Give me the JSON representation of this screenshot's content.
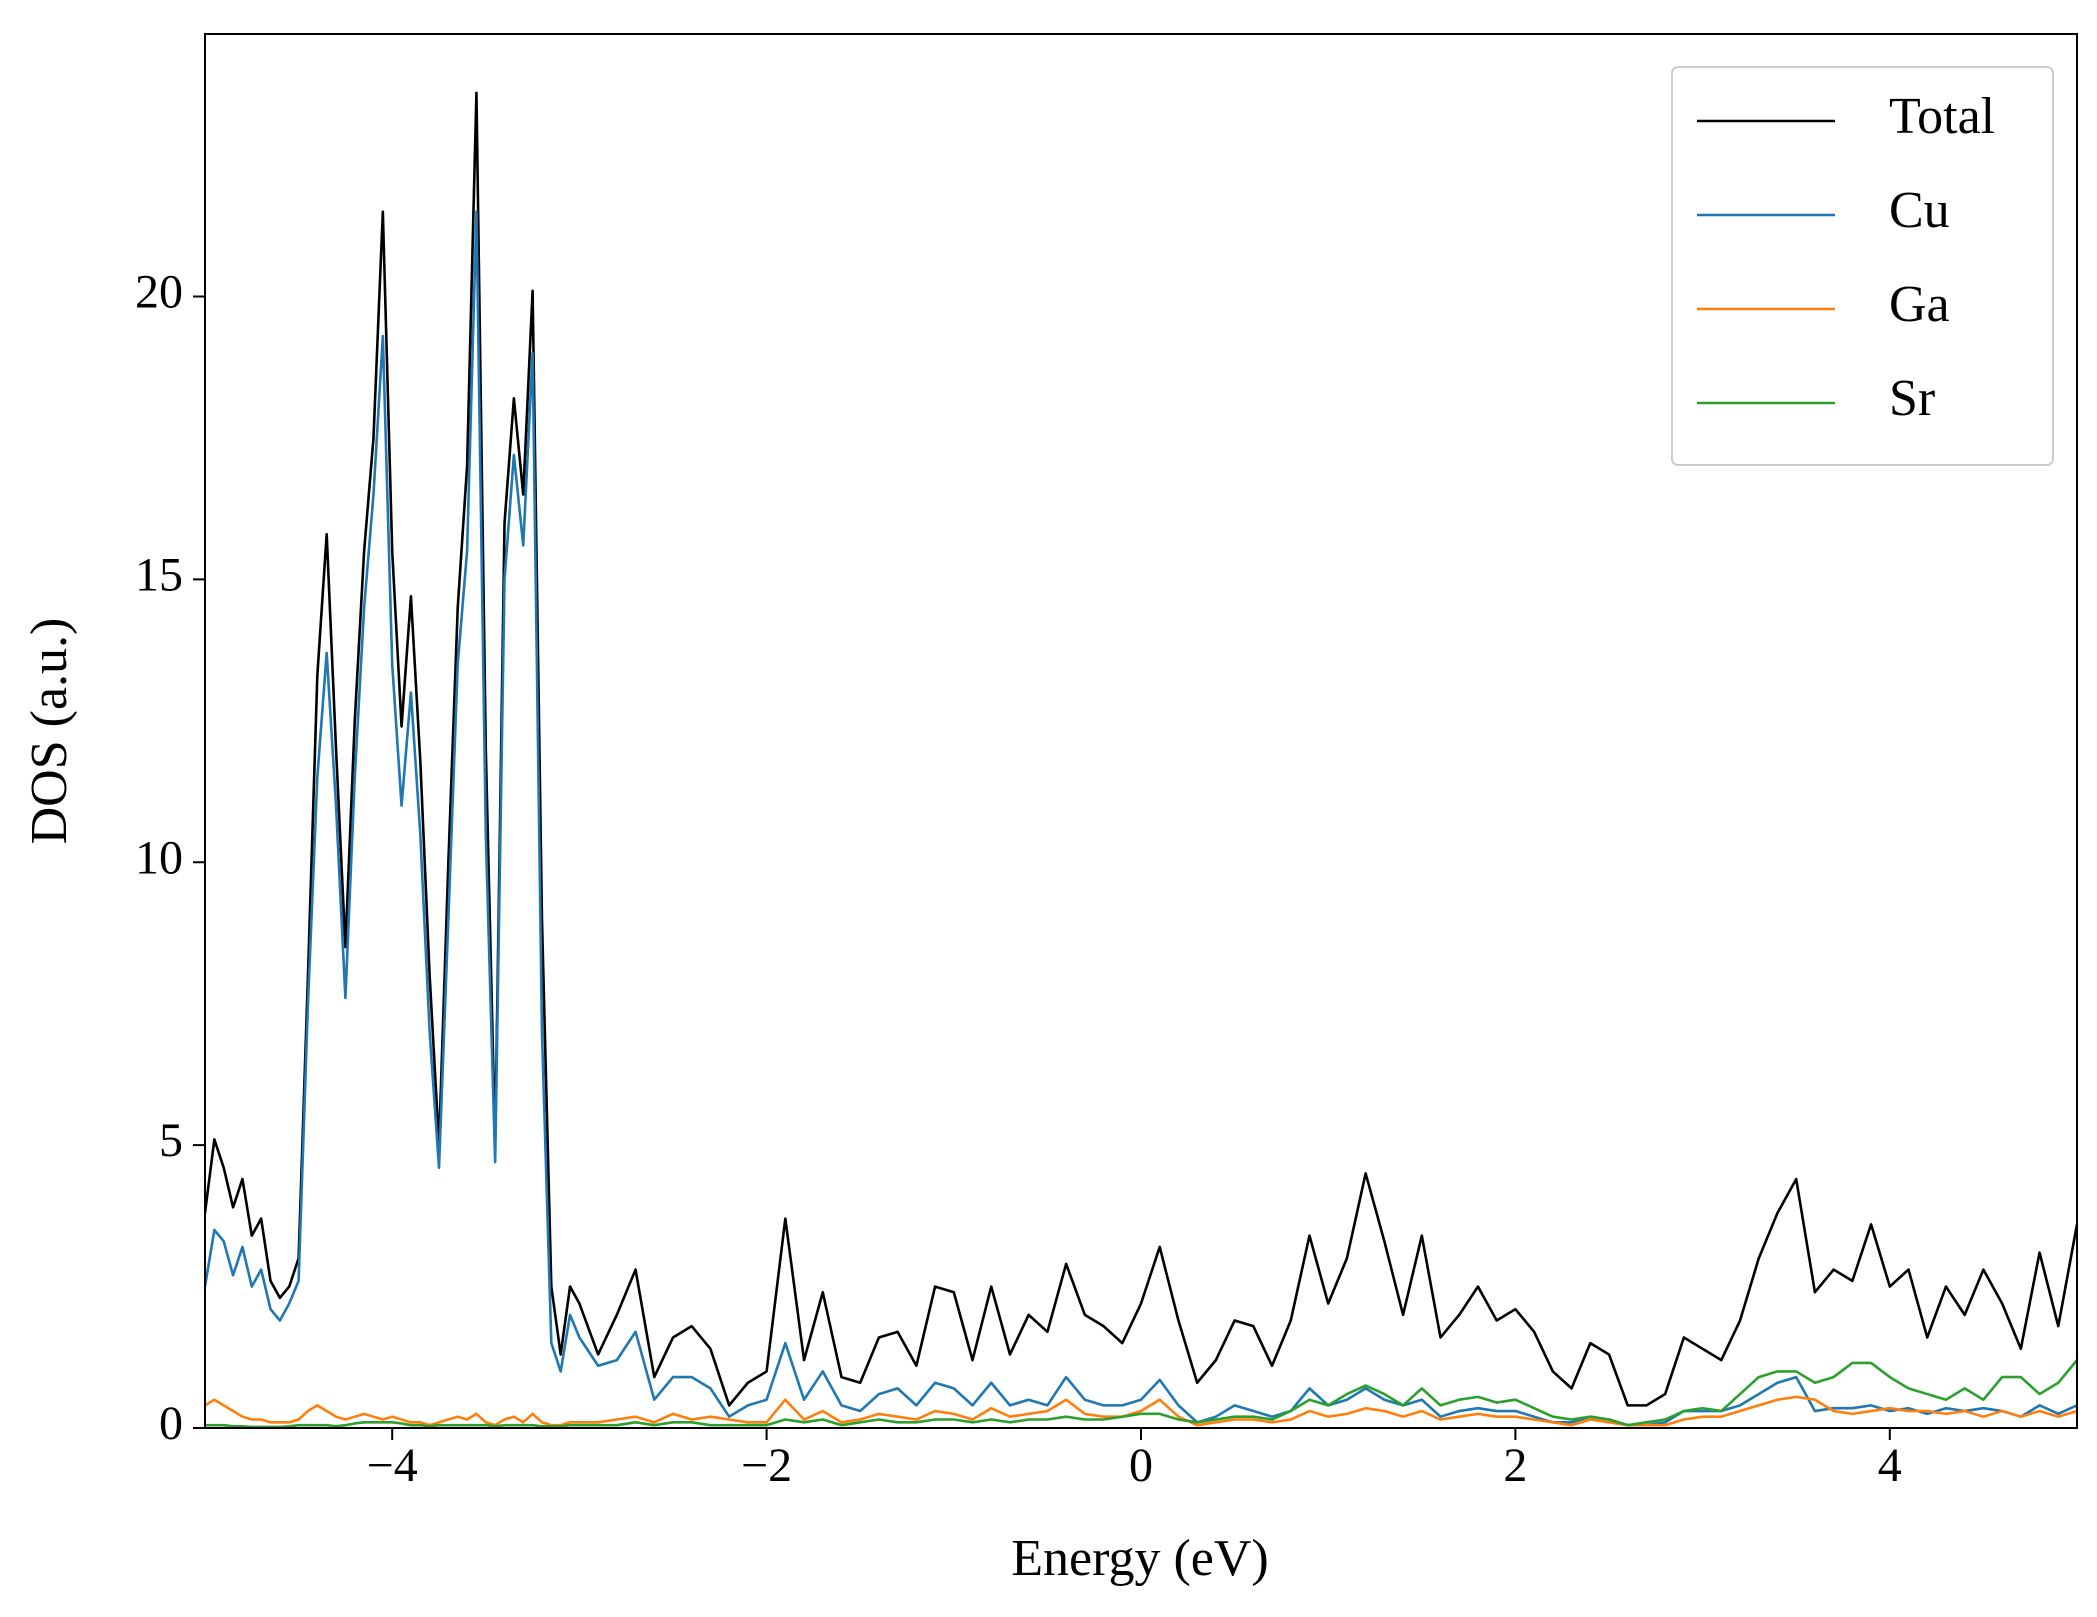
{
  "chart_data": {
    "type": "line",
    "xlabel": "Energy (eV)",
    "ylabel": "DOS (a.u.)",
    "xlim": [
      -5,
      5
    ],
    "ylim": [
      0,
      24.64
    ],
    "xticks": [
      {
        "value": -4,
        "label": "−4"
      },
      {
        "value": -2,
        "label": "−2"
      },
      0,
      2,
      4
    ],
    "yticks": [
      0,
      5,
      10,
      15,
      20
    ],
    "legend": "upper right",
    "x": [
      -5,
      -4.95,
      -4.9,
      -4.85,
      -4.8,
      -4.75,
      -4.7,
      -4.65,
      -4.6,
      -4.55,
      -4.5,
      -4.45,
      -4.4,
      -4.35,
      -4.3,
      -4.25,
      -4.2,
      -4.15,
      -4.1,
      -4.05,
      -4,
      -3.95,
      -3.9,
      -3.85,
      -3.8,
      -3.75,
      -3.7,
      -3.65,
      -3.6,
      -3.55,
      -3.5,
      -3.45,
      -3.4,
      -3.35,
      -3.3,
      -3.25,
      -3.2,
      -3.15,
      -3.1,
      -3.05,
      -3,
      -2.9,
      -2.8,
      -2.7,
      -2.6,
      -2.5,
      -2.4,
      -2.3,
      -2.2,
      -2.1,
      -2,
      -1.9,
      -1.8,
      -1.7,
      -1.6,
      -1.5,
      -1.4,
      -1.3,
      -1.2,
      -1.1,
      -1,
      -0.9,
      -0.8,
      -0.7,
      -0.6,
      -0.5,
      -0.4,
      -0.3,
      -0.2,
      -0.1,
      0,
      0.1,
      0.2,
      0.3,
      0.4,
      0.5,
      0.6,
      0.7,
      0.8,
      0.9,
      1,
      1.1,
      1.2,
      1.3,
      1.4,
      1.5,
      1.6,
      1.7,
      1.8,
      1.9,
      2,
      2.1,
      2.2,
      2.3,
      2.4,
      2.5,
      2.6,
      2.7,
      2.8,
      2.9,
      3,
      3.1,
      3.2,
      3.3,
      3.4,
      3.5,
      3.6,
      3.7,
      3.8,
      3.9,
      4,
      4.1,
      4.2,
      4.3,
      4.4,
      4.5,
      4.6,
      4.7,
      4.8,
      4.9,
      5
    ],
    "series": [
      {
        "name": "Total",
        "color": "#000000",
        "values": [
          3.8,
          5.1,
          4.6,
          3.9,
          4.4,
          3.4,
          3.7,
          2.6,
          2.3,
          2.5,
          3.0,
          8.0,
          13.3,
          15.8,
          12.0,
          8.5,
          12.5,
          15.5,
          17.5,
          21.5,
          15.5,
          12.4,
          14.7,
          11.8,
          8.0,
          5.0,
          10.0,
          14.5,
          17.0,
          23.6,
          12.0,
          5.0,
          16.0,
          18.2,
          16.5,
          20.1,
          9.0,
          2.5,
          1.3,
          2.5,
          2.2,
          1.3,
          2.0,
          2.8,
          0.9,
          1.6,
          1.8,
          1.4,
          0.4,
          0.8,
          1.0,
          3.7,
          1.2,
          2.4,
          0.9,
          0.8,
          1.6,
          1.7,
          1.1,
          2.5,
          2.4,
          1.2,
          2.5,
          1.3,
          2.0,
          1.7,
          2.9,
          2.0,
          1.8,
          1.5,
          2.2,
          3.2,
          1.9,
          0.8,
          1.2,
          1.9,
          1.8,
          1.1,
          1.9,
          3.4,
          2.2,
          3.0,
          4.5,
          3.3,
          2.0,
          3.4,
          1.6,
          2.0,
          2.5,
          1.9,
          2.1,
          1.7,
          1.0,
          0.7,
          1.5,
          1.3,
          0.4,
          0.4,
          0.6,
          1.6,
          1.4,
          1.2,
          1.9,
          3.0,
          3.8,
          4.4,
          2.4,
          2.8,
          2.6,
          3.6,
          2.5,
          2.8,
          1.6,
          2.5,
          2.0,
          2.8,
          2.2,
          1.4,
          3.1,
          1.8,
          3.6
        ]
      },
      {
        "name": "Cu",
        "color": "#1f77b4",
        "values": [
          2.5,
          3.5,
          3.3,
          2.7,
          3.2,
          2.5,
          2.8,
          2.1,
          1.9,
          2.2,
          2.6,
          7.5,
          11.5,
          13.7,
          11.0,
          7.6,
          11.5,
          14.5,
          16.5,
          19.3,
          13.5,
          11.0,
          13.0,
          10.5,
          7.0,
          4.6,
          9.0,
          13.5,
          15.5,
          21.5,
          10.5,
          4.7,
          15.0,
          17.2,
          15.6,
          19.0,
          7.0,
          1.5,
          1.0,
          2.0,
          1.6,
          1.1,
          1.2,
          1.7,
          0.5,
          0.9,
          0.9,
          0.7,
          0.2,
          0.4,
          0.5,
          1.5,
          0.5,
          1.0,
          0.4,
          0.3,
          0.6,
          0.7,
          0.4,
          0.8,
          0.7,
          0.4,
          0.8,
          0.4,
          0.5,
          0.4,
          0.9,
          0.5,
          0.4,
          0.4,
          0.5,
          0.85,
          0.4,
          0.1,
          0.2,
          0.4,
          0.3,
          0.2,
          0.3,
          0.7,
          0.4,
          0.5,
          0.7,
          0.5,
          0.4,
          0.5,
          0.2,
          0.3,
          0.35,
          0.3,
          0.3,
          0.2,
          0.1,
          0.1,
          0.2,
          0.15,
          0.05,
          0.05,
          0.1,
          0.3,
          0.3,
          0.3,
          0.4,
          0.6,
          0.8,
          0.9,
          0.3,
          0.35,
          0.35,
          0.4,
          0.3,
          0.35,
          0.25,
          0.35,
          0.3,
          0.35,
          0.3,
          0.2,
          0.4,
          0.25,
          0.4
        ]
      },
      {
        "name": "Ga",
        "color": "#ff7f0e",
        "values": [
          0.4,
          0.5,
          0.4,
          0.3,
          0.2,
          0.15,
          0.15,
          0.1,
          0.1,
          0.1,
          0.15,
          0.3,
          0.4,
          0.3,
          0.2,
          0.15,
          0.2,
          0.25,
          0.2,
          0.15,
          0.2,
          0.15,
          0.1,
          0.1,
          0.05,
          0.1,
          0.15,
          0.2,
          0.15,
          0.25,
          0.1,
          0.05,
          0.15,
          0.2,
          0.1,
          0.25,
          0.1,
          0.05,
          0.05,
          0.1,
          0.1,
          0.1,
          0.15,
          0.2,
          0.1,
          0.25,
          0.15,
          0.2,
          0.15,
          0.1,
          0.1,
          0.5,
          0.15,
          0.3,
          0.1,
          0.15,
          0.25,
          0.2,
          0.15,
          0.3,
          0.25,
          0.15,
          0.35,
          0.2,
          0.25,
          0.3,
          0.5,
          0.25,
          0.2,
          0.2,
          0.3,
          0.5,
          0.2,
          0.05,
          0.1,
          0.15,
          0.15,
          0.1,
          0.15,
          0.3,
          0.2,
          0.25,
          0.35,
          0.3,
          0.2,
          0.3,
          0.15,
          0.2,
          0.25,
          0.2,
          0.2,
          0.15,
          0.1,
          0.05,
          0.15,
          0.1,
          0.05,
          0.05,
          0.05,
          0.15,
          0.2,
          0.2,
          0.3,
          0.4,
          0.5,
          0.55,
          0.5,
          0.3,
          0.25,
          0.3,
          0.35,
          0.3,
          0.3,
          0.25,
          0.3,
          0.2,
          0.3,
          0.2,
          0.3,
          0.2,
          0.3
        ]
      },
      {
        "name": "Sr",
        "color": "#2ca02c",
        "values": [
          0.05,
          0.05,
          0.05,
          0.03,
          0.03,
          0.02,
          0.02,
          0.02,
          0.02,
          0.03,
          0.05,
          0.05,
          0.05,
          0.05,
          0.03,
          0.05,
          0.08,
          0.1,
          0.1,
          0.1,
          0.1,
          0.08,
          0.05,
          0.05,
          0.03,
          0.05,
          0.05,
          0.05,
          0.05,
          0.05,
          0.05,
          0.03,
          0.05,
          0.05,
          0.05,
          0.05,
          0.03,
          0.03,
          0.03,
          0.05,
          0.05,
          0.05,
          0.05,
          0.1,
          0.05,
          0.1,
          0.1,
          0.05,
          0.05,
          0.05,
          0.05,
          0.15,
          0.1,
          0.15,
          0.05,
          0.1,
          0.15,
          0.1,
          0.1,
          0.15,
          0.15,
          0.1,
          0.15,
          0.1,
          0.15,
          0.15,
          0.2,
          0.15,
          0.15,
          0.2,
          0.25,
          0.25,
          0.15,
          0.1,
          0.15,
          0.2,
          0.2,
          0.15,
          0.3,
          0.5,
          0.4,
          0.6,
          0.75,
          0.6,
          0.4,
          0.7,
          0.4,
          0.5,
          0.55,
          0.45,
          0.5,
          0.35,
          0.2,
          0.15,
          0.2,
          0.15,
          0.05,
          0.1,
          0.15,
          0.3,
          0.35,
          0.3,
          0.6,
          0.9,
          1.0,
          1.0,
          0.8,
          0.9,
          1.15,
          1.15,
          0.9,
          0.7,
          0.6,
          0.5,
          0.7,
          0.5,
          0.9,
          0.9,
          0.6,
          0.8,
          1.2
        ]
      }
    ]
  }
}
